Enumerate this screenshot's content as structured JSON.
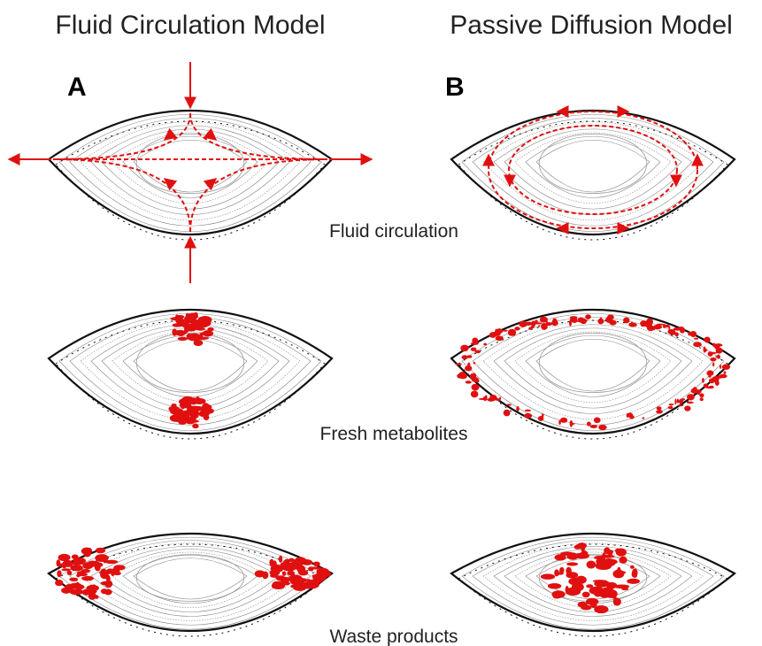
{
  "columns": [
    {
      "title": "Fluid Circulation Model",
      "label": "A"
    },
    {
      "title": "Passive Diffusion Model",
      "label": "B"
    }
  ],
  "rows": [
    {
      "label": "Fluid circulation"
    },
    {
      "label": "Fresh metabolites"
    },
    {
      "label": "Waste products"
    }
  ]
}
